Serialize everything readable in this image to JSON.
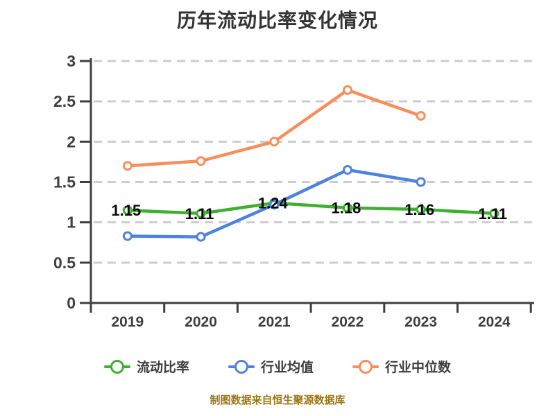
{
  "title": "历年流动比率变化情况",
  "footer": {
    "text": "制图数据来自恒生聚源数据库",
    "color": "#9c7615"
  },
  "chart_data": {
    "type": "line",
    "title": "历年流动比率变化情况",
    "categories": [
      "2019",
      "2020",
      "2021",
      "2022",
      "2023",
      "2024"
    ],
    "ylim": [
      0,
      3
    ],
    "ytick_labels": [
      "0",
      "0.5",
      "1",
      "1.5",
      "2",
      "2.5",
      "3"
    ],
    "grid": "horizontal-dashed",
    "legend_position": "bottom",
    "colors": {
      "axis": "#3f3f3f",
      "gridline": "#cdcdcd",
      "tick_label": "#3f3f3f",
      "data_label": "#0a0a0a"
    },
    "series": [
      {
        "name": "流动比率",
        "color": "#3eaf30",
        "values": [
          1.15,
          1.11,
          1.24,
          1.18,
          1.16,
          1.11
        ],
        "data_labels": [
          "1.15",
          "1.11",
          "1.24",
          "1.18",
          "1.16",
          "1.11"
        ]
      },
      {
        "name": "行业均值",
        "color": "#4d82de",
        "values": [
          0.83,
          0.82,
          1.22,
          1.65,
          1.5,
          null
        ]
      },
      {
        "name": "行业中位数",
        "color": "#f78e5b",
        "values": [
          1.7,
          1.76,
          2.0,
          2.64,
          2.32,
          null
        ]
      }
    ]
  }
}
